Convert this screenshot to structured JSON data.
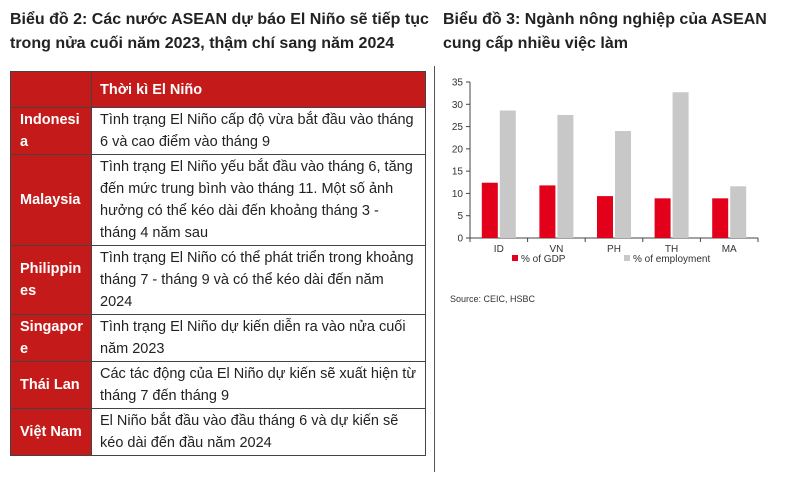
{
  "left": {
    "title": "Biểu đồ 2: Các nước ASEAN dự báo El Niño sẽ tiếp tục trong nửa cuối năm 2023, thậm chí sang năm 2024",
    "table": {
      "header_blank": "",
      "header": "Thời kì El Niño",
      "rows": [
        {
          "country": "Indonesia",
          "desc": "Tình trạng El Niño cấp độ vừa bắt đầu vào tháng 6 và cao điểm vào tháng 9"
        },
        {
          "country": "Malaysia",
          "desc": "Tình trạng El Niño yếu bắt đầu vào tháng 6, tăng đến mức trung bình vào tháng 11. Một số ảnh hưởng có thể kéo dài đến khoảng tháng 3 - tháng 4 năm sau"
        },
        {
          "country": "Philippines",
          "desc": "Tình trạng El Niño có thể phát triển trong khoảng tháng 7 - tháng 9 và có thể kéo dài đến năm 2024"
        },
        {
          "country": "Singapore",
          "desc": "Tình trạng El Niño dự kiến diễn ra vào nửa cuối năm 2023"
        },
        {
          "country": "Thái Lan",
          "desc": "Các tác động của El Niño dự kiến sẽ xuất hiện từ tháng 7 đến tháng 9"
        },
        {
          "country": "Việt Nam",
          "desc": "El Niño bắt đầu vào đầu tháng 6 và dự kiến sẽ kéo dài đến đầu năm 2024"
        }
      ]
    }
  },
  "right": {
    "title": "Biểu đồ 3: Ngành nông nghiệp của ASEAN cung cấp nhiều việc làm",
    "source": "Source: CEIC, HSBC"
  },
  "chart_data": {
    "type": "bar",
    "title": "",
    "xlabel": "",
    "ylabel": "",
    "categories": [
      "ID",
      "VN",
      "PH",
      "TH",
      "MA"
    ],
    "series": [
      {
        "name": "% of GDP",
        "color": "#e3001b",
        "values": [
          12.4,
          11.8,
          9.4,
          8.9,
          8.9
        ]
      },
      {
        "name": "% of employment",
        "color": "#c8c8c8",
        "values": [
          28.6,
          27.6,
          24.0,
          32.7,
          11.6
        ]
      }
    ],
    "ylim": [
      0,
      35
    ],
    "yticks": [
      0,
      5,
      10,
      15,
      20,
      25,
      30,
      35
    ],
    "grid": false,
    "legend": "bottom"
  }
}
